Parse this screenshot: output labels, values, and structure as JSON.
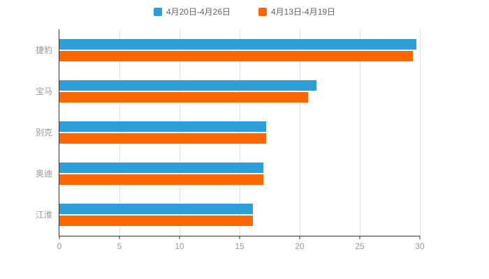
{
  "chart_data": {
    "type": "bar",
    "orientation": "horizontal",
    "title": "",
    "xlabel": "",
    "ylabel": "",
    "categories": [
      "捷豹",
      "宝马",
      "别克",
      "奥迪",
      "江淮"
    ],
    "series": [
      {
        "name": "4月20日-4月26日",
        "color": "#2D9FD8",
        "values": [
          29.7,
          21.4,
          17.2,
          17.0,
          16.1
        ]
      },
      {
        "name": "4月13日-4月19日",
        "color": "#FF6600",
        "values": [
          29.4,
          20.7,
          17.2,
          17.0,
          16.1
        ]
      }
    ],
    "xlim": [
      0,
      30
    ],
    "xticks": [
      0,
      5,
      10,
      15,
      20,
      25,
      30
    ],
    "grid": true,
    "legend_position": "top",
    "colors": {
      "axis": "#333333",
      "tick_label": "#999999",
      "gridline": "#e0e0e0"
    }
  }
}
